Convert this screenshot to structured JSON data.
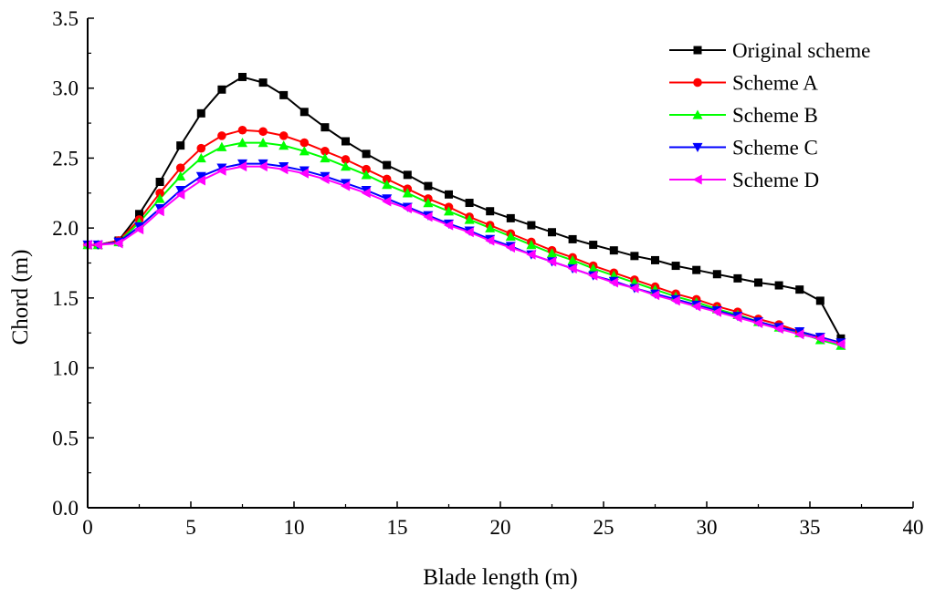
{
  "chart_data": {
    "type": "line",
    "title": "",
    "xlabel": "Blade length (m)",
    "ylabel": "Chord (m)",
    "xlim": [
      0,
      40
    ],
    "ylim": [
      0,
      3.5
    ],
    "xticks": [
      0,
      5,
      10,
      15,
      20,
      25,
      30,
      35,
      40
    ],
    "yticks": [
      0.0,
      0.5,
      1.0,
      1.5,
      2.0,
      2.5,
      3.0,
      3.5
    ],
    "xtick_labels": [
      "0",
      "5",
      "10",
      "15",
      "20",
      "25",
      "30",
      "35",
      "40"
    ],
    "ytick_labels": [
      "0.0",
      "0.5",
      "1.0",
      "1.5",
      "2.0",
      "2.5",
      "3.0",
      "3.5"
    ],
    "grid": false,
    "legend_position": "top-right",
    "x": [
      0,
      0.5,
      1.5,
      2.5,
      3.5,
      4.5,
      5.5,
      6.5,
      7.5,
      8.5,
      9.5,
      10.5,
      11.5,
      12.5,
      13.5,
      14.5,
      15.5,
      16.5,
      17.5,
      18.5,
      19.5,
      20.5,
      21.5,
      22.5,
      23.5,
      24.5,
      25.5,
      26.5,
      27.5,
      28.5,
      29.5,
      30.5,
      31.5,
      32.5,
      33.5,
      34.5,
      35.5,
      36.5
    ],
    "series": [
      {
        "name": "Original scheme",
        "color": "#000000",
        "marker": "square",
        "values": [
          1.88,
          1.88,
          1.91,
          2.1,
          2.33,
          2.59,
          2.82,
          2.99,
          3.08,
          3.04,
          2.95,
          2.83,
          2.72,
          2.62,
          2.53,
          2.45,
          2.38,
          2.3,
          2.24,
          2.18,
          2.12,
          2.07,
          2.02,
          1.97,
          1.92,
          1.88,
          1.84,
          1.8,
          1.77,
          1.73,
          1.7,
          1.67,
          1.64,
          1.61,
          1.59,
          1.56,
          1.48,
          1.21
        ]
      },
      {
        "name": "Scheme A",
        "color": "#ff0000",
        "marker": "circle",
        "values": [
          1.88,
          1.88,
          1.91,
          2.06,
          2.25,
          2.43,
          2.57,
          2.66,
          2.7,
          2.69,
          2.66,
          2.61,
          2.55,
          2.49,
          2.42,
          2.35,
          2.28,
          2.21,
          2.15,
          2.08,
          2.02,
          1.96,
          1.9,
          1.84,
          1.79,
          1.73,
          1.68,
          1.63,
          1.58,
          1.53,
          1.49,
          1.44,
          1.4,
          1.35,
          1.31,
          1.26,
          1.22,
          1.18
        ]
      },
      {
        "name": "Scheme B",
        "color": "#00ff00",
        "marker": "triangle-up",
        "values": [
          1.88,
          1.88,
          1.9,
          2.04,
          2.21,
          2.37,
          2.5,
          2.58,
          2.61,
          2.61,
          2.59,
          2.55,
          2.5,
          2.44,
          2.38,
          2.31,
          2.25,
          2.18,
          2.12,
          2.06,
          2.0,
          1.94,
          1.88,
          1.82,
          1.77,
          1.71,
          1.66,
          1.61,
          1.56,
          1.51,
          1.47,
          1.42,
          1.38,
          1.33,
          1.29,
          1.25,
          1.2,
          1.16
        ]
      },
      {
        "name": "Scheme C",
        "color": "#0000ff",
        "marker": "triangle-down",
        "values": [
          1.88,
          1.88,
          1.9,
          2.01,
          2.14,
          2.27,
          2.37,
          2.43,
          2.46,
          2.46,
          2.44,
          2.41,
          2.37,
          2.32,
          2.27,
          2.21,
          2.15,
          2.09,
          2.03,
          1.98,
          1.92,
          1.87,
          1.81,
          1.76,
          1.71,
          1.66,
          1.62,
          1.57,
          1.53,
          1.49,
          1.45,
          1.41,
          1.37,
          1.33,
          1.29,
          1.26,
          1.22,
          1.18
        ]
      },
      {
        "name": "Scheme D",
        "color": "#ff00ff",
        "marker": "triangle-left",
        "values": [
          1.88,
          1.88,
          1.89,
          1.99,
          2.12,
          2.24,
          2.34,
          2.41,
          2.44,
          2.44,
          2.42,
          2.39,
          2.35,
          2.3,
          2.25,
          2.19,
          2.14,
          2.08,
          2.02,
          1.97,
          1.91,
          1.86,
          1.81,
          1.76,
          1.71,
          1.66,
          1.61,
          1.57,
          1.52,
          1.48,
          1.44,
          1.4,
          1.36,
          1.32,
          1.28,
          1.24,
          1.21,
          1.17
        ]
      }
    ]
  }
}
